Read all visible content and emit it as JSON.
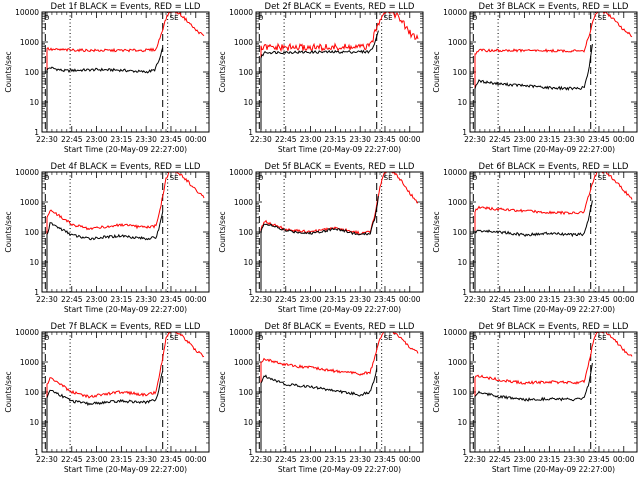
{
  "chart_data": [
    {
      "type": "line",
      "title": "Det 1f BLACK = Events, RED = LLD",
      "xlabel": "Start Time (20-May-09 22:27:00)",
      "ylabel": "Counts/sec",
      "yscale": "log",
      "ylim": [
        1,
        10000
      ],
      "xlim": [
        "22:27",
        "00:08"
      ],
      "yticks": [
        "1",
        "10",
        "100",
        "1000",
        "10000"
      ],
      "xticks": [
        "22:30",
        "22:45",
        "23:00",
        "23:15",
        "23:30",
        "23:45",
        "00:00"
      ],
      "dashed_lines": [
        "22:29",
        "23:40"
      ],
      "dotted_lines": [
        "22:44",
        "23:43"
      ],
      "left_marker": "D",
      "right_marker": "SE",
      "series": [
        {
          "color": "#000000",
          "x": [
            "22:30",
            "22:32",
            "22:40",
            "23:00",
            "23:15",
            "23:30",
            "23:35",
            "23:38",
            "23:40"
          ],
          "values": [
            120,
            140,
            110,
            120,
            115,
            100,
            115,
            250,
            600
          ]
        },
        {
          "color": "#ff0000",
          "x": [
            "22:30",
            "22:32",
            "23:00",
            "23:30",
            "23:36",
            "23:39",
            "23:42",
            "23:44",
            "23:46",
            "23:50",
            "23:55",
            "00:00",
            "00:05"
          ],
          "values": [
            620,
            560,
            520,
            530,
            560,
            1800,
            6000,
            10000,
            11000,
            9000,
            5000,
            2500,
            1600
          ]
        }
      ]
    },
    {
      "type": "line",
      "title": "Det 2f BLACK = Events, RED = LLD",
      "xlabel": "Start Time (20-May-09 22:27:00)",
      "ylabel": "Counts/sec",
      "yscale": "log",
      "ylim": [
        1,
        10000
      ],
      "xlim": [
        "22:27",
        "00:08"
      ],
      "yticks": [
        "1",
        "10",
        "100",
        "1000",
        "10000"
      ],
      "xticks": [
        "22:30",
        "22:45",
        "23:00",
        "23:15",
        "23:30",
        "23:45",
        "00:00"
      ],
      "dashed_lines": [
        "22:29",
        "23:40"
      ],
      "dotted_lines": [
        "22:44",
        "23:43"
      ],
      "left_marker": "D",
      "right_marker": "SE",
      "series": [
        {
          "color": "#000000",
          "x": [
            "22:30",
            "22:32",
            "23:00",
            "23:30",
            "23:36",
            "23:39",
            "23:41"
          ],
          "values": [
            300,
            450,
            460,
            470,
            480,
            900,
            2500
          ]
        },
        {
          "color": "#ff0000",
          "x": [
            "22:30",
            "22:32",
            "23:00",
            "23:30",
            "23:36",
            "23:39",
            "23:42",
            "23:44",
            "23:46",
            "23:50",
            "23:55",
            "00:00",
            "00:05"
          ],
          "values": [
            600,
            650,
            650,
            660,
            700,
            2000,
            6000,
            10000,
            12000,
            10000,
            5000,
            2000,
            1300
          ]
        }
      ]
    },
    {
      "type": "line",
      "title": "Det 3f BLACK = Events, RED = LLD",
      "xlabel": "Start Time (20-May-09 22:27:00)",
      "ylabel": "Counts/sec",
      "yscale": "log",
      "ylim": [
        1,
        10000
      ],
      "xlim": [
        "22:27",
        "00:08"
      ],
      "yticks": [
        "1",
        "10",
        "100",
        "1000",
        "10000"
      ],
      "xticks": [
        "22:30",
        "22:45",
        "23:00",
        "23:15",
        "23:30",
        "23:45",
        "00:00"
      ],
      "dashed_lines": [
        "22:29",
        "23:40"
      ],
      "dotted_lines": [
        "22:44",
        "23:43"
      ],
      "left_marker": "D",
      "right_marker": "SE",
      "series": [
        {
          "color": "#000000",
          "x": [
            "22:30",
            "22:32",
            "22:45",
            "23:00",
            "23:15",
            "23:30",
            "23:36",
            "23:39",
            "23:41"
          ],
          "values": [
            30,
            50,
            40,
            35,
            30,
            28,
            30,
            120,
            800
          ]
        },
        {
          "color": "#ff0000",
          "x": [
            "22:30",
            "22:32",
            "23:00",
            "23:30",
            "23:36",
            "23:39",
            "23:42",
            "23:44",
            "23:46",
            "23:50",
            "23:55",
            "00:00",
            "00:05"
          ],
          "values": [
            400,
            520,
            520,
            500,
            520,
            1700,
            6000,
            10000,
            11000,
            9000,
            5000,
            2500,
            1600
          ]
        }
      ]
    },
    {
      "type": "line",
      "title": "Det 4f BLACK = Events, RED = LLD",
      "xlabel": "Start Time (20-May-09 22:27:00)",
      "ylabel": "Counts/sec",
      "yscale": "log",
      "ylim": [
        1,
        10000
      ],
      "xlim": [
        "22:27",
        "00:08"
      ],
      "yticks": [
        "1",
        "10",
        "100",
        "1000",
        "10000"
      ],
      "xticks": [
        "22:30",
        "22:45",
        "23:00",
        "23:15",
        "23:30",
        "23:45",
        "00:00"
      ],
      "dashed_lines": [
        "22:29",
        "23:40"
      ],
      "dotted_lines": [
        "22:44",
        "23:43"
      ],
      "left_marker": "D",
      "right_marker": "SE",
      "series": [
        {
          "color": "#000000",
          "x": [
            "22:30",
            "22:32",
            "22:45",
            "22:55",
            "23:15",
            "23:30",
            "23:36",
            "23:38",
            "23:40"
          ],
          "values": [
            80,
            200,
            80,
            60,
            75,
            60,
            65,
            150,
            500
          ]
        },
        {
          "color": "#ff0000",
          "x": [
            "22:30",
            "22:32",
            "22:45",
            "22:55",
            "23:15",
            "23:30",
            "23:36",
            "23:39",
            "23:42",
            "23:44",
            "23:46",
            "23:50",
            "23:55",
            "00:00",
            "00:05"
          ],
          "values": [
            300,
            550,
            180,
            130,
            170,
            140,
            160,
            800,
            6000,
            10000,
            11000,
            9000,
            5000,
            2500,
            1500
          ]
        }
      ]
    },
    {
      "type": "line",
      "title": "Det 5f BLACK = Events, RED = LLD",
      "xlabel": "Start Time (20-May-09 22:27:00)",
      "ylabel": "Counts/sec",
      "yscale": "log",
      "ylim": [
        1,
        10000
      ],
      "xlim": [
        "22:27",
        "00:08"
      ],
      "yticks": [
        "1",
        "10",
        "100",
        "1000",
        "10000"
      ],
      "xticks": [
        "22:30",
        "22:45",
        "23:00",
        "23:15",
        "23:30",
        "23:45",
        "00:00"
      ],
      "dashed_lines": [
        "22:29",
        "23:40"
      ],
      "dotted_lines": [
        "22:44",
        "23:43"
      ],
      "left_marker": "D",
      "right_marker": "SE",
      "series": [
        {
          "color": "#000000",
          "x": [
            "22:30",
            "22:32",
            "22:45",
            "23:00",
            "23:15",
            "23:30",
            "23:36",
            "23:39",
            "23:41"
          ],
          "values": [
            100,
            200,
            110,
            90,
            130,
            80,
            90,
            300,
            1500
          ]
        },
        {
          "color": "#ff0000",
          "x": [
            "22:30",
            "22:32",
            "22:45",
            "23:00",
            "23:15",
            "23:30",
            "23:36",
            "23:39",
            "23:42",
            "23:44",
            "23:46",
            "23:50",
            "23:55",
            "00:00",
            "00:05"
          ],
          "values": [
            120,
            230,
            120,
            100,
            140,
            90,
            100,
            400,
            3000,
            8000,
            11000,
            10000,
            5000,
            2000,
            900
          ]
        }
      ]
    },
    {
      "type": "line",
      "title": "Det 6f BLACK = Events, RED = LLD",
      "xlabel": "Start Time (20-May-09 22:27:00)",
      "ylabel": "Counts/sec",
      "yscale": "log",
      "ylim": [
        1,
        10000
      ],
      "xlim": [
        "22:27",
        "00:08"
      ],
      "yticks": [
        "1",
        "10",
        "100",
        "1000",
        "10000"
      ],
      "xticks": [
        "22:30",
        "22:45",
        "23:00",
        "23:15",
        "23:30",
        "23:45",
        "00:00"
      ],
      "dashed_lines": [
        "22:29",
        "23:40"
      ],
      "dotted_lines": [
        "22:44",
        "23:43"
      ],
      "left_marker": "D",
      "right_marker": "SE",
      "series": [
        {
          "color": "#000000",
          "x": [
            "22:30",
            "22:32",
            "22:45",
            "23:00",
            "23:15",
            "23:30",
            "23:36",
            "23:39",
            "23:41"
          ],
          "values": [
            100,
            110,
            100,
            80,
            90,
            80,
            85,
            300,
            1200
          ]
        },
        {
          "color": "#ff0000",
          "x": [
            "22:30",
            "22:32",
            "23:00",
            "23:30",
            "23:36",
            "23:39",
            "23:42",
            "23:44",
            "23:46",
            "23:50",
            "23:55",
            "00:00",
            "00:05"
          ],
          "values": [
            500,
            650,
            500,
            420,
            460,
            1800,
            6000,
            10000,
            11000,
            9000,
            5000,
            2500,
            1200
          ]
        }
      ]
    },
    {
      "type": "line",
      "title": "Det 7f BLACK = Events, RED = LLD",
      "xlabel": "Start Time (20-May-09 22:27:00)",
      "ylabel": "Counts/sec",
      "yscale": "log",
      "ylim": [
        1,
        10000
      ],
      "xlim": [
        "22:27",
        "00:08"
      ],
      "yticks": [
        "1",
        "10",
        "100",
        "1000",
        "10000"
      ],
      "xticks": [
        "22:30",
        "22:45",
        "23:00",
        "23:15",
        "23:30",
        "23:45",
        "00:00"
      ],
      "dashed_lines": [
        "22:29",
        "23:40"
      ],
      "dotted_lines": [
        "22:44",
        "23:43"
      ],
      "left_marker": "D",
      "right_marker": "SE",
      "series": [
        {
          "color": "#000000",
          "x": [
            "22:30",
            "22:32",
            "22:45",
            "22:55",
            "23:15",
            "23:30",
            "23:36",
            "23:38",
            "23:40"
          ],
          "values": [
            60,
            120,
            50,
            40,
            50,
            45,
            55,
            150,
            500
          ]
        },
        {
          "color": "#ff0000",
          "x": [
            "22:30",
            "22:32",
            "22:45",
            "22:55",
            "23:15",
            "23:30",
            "23:36",
            "23:39",
            "23:42",
            "23:44",
            "23:46",
            "23:50",
            "23:55",
            "00:00",
            "00:05"
          ],
          "values": [
            180,
            300,
            100,
            70,
            100,
            80,
            100,
            700,
            6000,
            10000,
            11000,
            9000,
            5000,
            2500,
            1500
          ]
        }
      ]
    },
    {
      "type": "line",
      "title": "Det 8f BLACK = Events, RED = LLD",
      "xlabel": "Start Time (20-May-09 22:27:00)",
      "ylabel": "Counts/sec",
      "yscale": "log",
      "ylim": [
        1,
        10000
      ],
      "xlim": [
        "22:27",
        "00:08"
      ],
      "yticks": [
        "1",
        "10",
        "100",
        "1000",
        "10000"
      ],
      "xticks": [
        "22:30",
        "22:45",
        "23:00",
        "23:15",
        "23:30",
        "23:45",
        "00:00"
      ],
      "dashed_lines": [
        "22:29",
        "23:40"
      ],
      "dotted_lines": [
        "22:44",
        "23:43"
      ],
      "left_marker": "D",
      "right_marker": "SE",
      "series": [
        {
          "color": "#000000",
          "x": [
            "22:30",
            "22:32",
            "22:45",
            "23:00",
            "23:15",
            "23:30",
            "23:36",
            "23:38",
            "23:40"
          ],
          "values": [
            200,
            350,
            180,
            150,
            110,
            80,
            100,
            200,
            600
          ]
        },
        {
          "color": "#ff0000",
          "x": [
            "22:30",
            "22:32",
            "22:45",
            "23:00",
            "23:15",
            "23:30",
            "23:36",
            "23:39",
            "23:42",
            "23:44",
            "23:46",
            "23:50",
            "23:55",
            "00:00",
            "00:05"
          ],
          "values": [
            1000,
            1300,
            800,
            650,
            500,
            400,
            450,
            1500,
            6000,
            10000,
            11000,
            10000,
            6000,
            3000,
            2000
          ]
        }
      ]
    },
    {
      "type": "line",
      "title": "Det 9f BLACK = Events, RED = LLD",
      "xlabel": "Start Time (20-May-09 22:27:00)",
      "ylabel": "Counts/sec",
      "yscale": "log",
      "ylim": [
        1,
        10000
      ],
      "xlim": [
        "22:27",
        "00:08"
      ],
      "yticks": [
        "1",
        "10",
        "100",
        "1000",
        "10000"
      ],
      "xticks": [
        "22:30",
        "22:45",
        "23:00",
        "23:15",
        "23:30",
        "23:45",
        "00:00"
      ],
      "dashed_lines": [
        "22:29",
        "23:40"
      ],
      "dotted_lines": [
        "22:44",
        "23:43"
      ],
      "left_marker": "D",
      "right_marker": "SE",
      "series": [
        {
          "color": "#000000",
          "x": [
            "22:30",
            "22:32",
            "22:45",
            "23:00",
            "23:15",
            "23:30",
            "23:36",
            "23:39",
            "23:41"
          ],
          "values": [
            70,
            100,
            70,
            55,
            60,
            55,
            60,
            200,
            900
          ]
        },
        {
          "color": "#ff0000",
          "x": [
            "22:30",
            "22:32",
            "22:45",
            "23:00",
            "23:15",
            "23:30",
            "23:36",
            "23:39",
            "23:42",
            "23:44",
            "23:46",
            "23:50",
            "23:55",
            "00:00",
            "00:05"
          ],
          "values": [
            300,
            350,
            250,
            200,
            220,
            200,
            220,
            1000,
            6000,
            10000,
            11000,
            9000,
            5000,
            2500,
            1500
          ]
        }
      ]
    }
  ]
}
